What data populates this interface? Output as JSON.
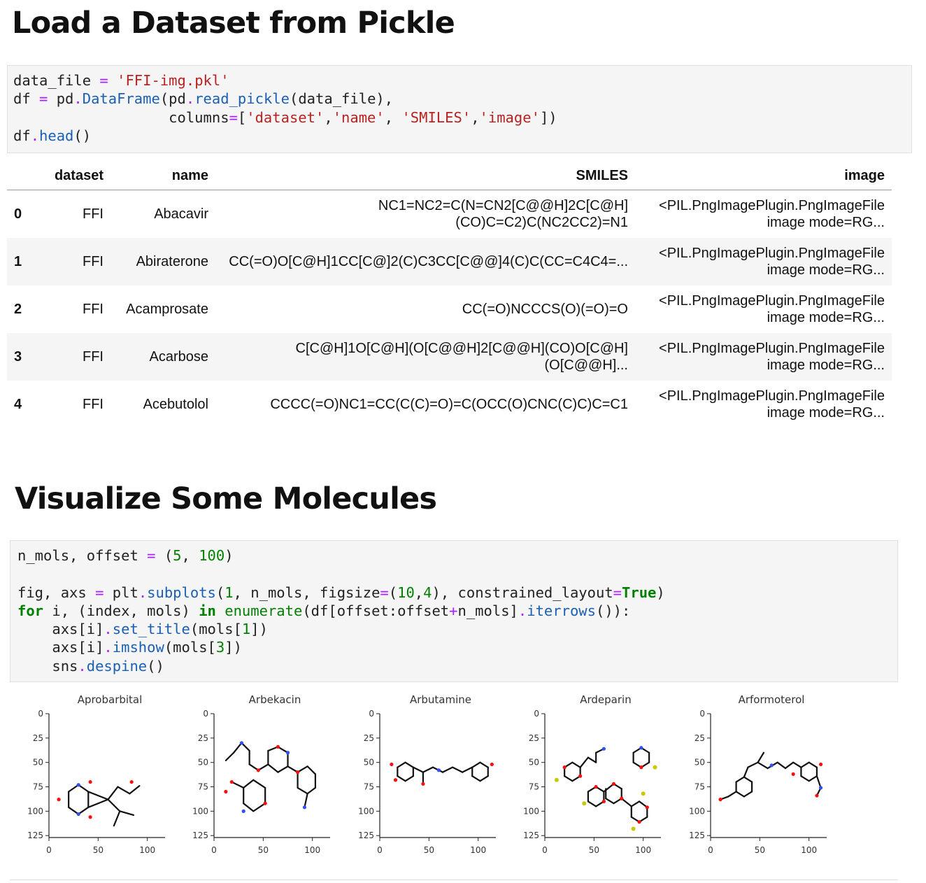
{
  "section1": {
    "heading": "Load a Dataset from Pickle"
  },
  "section2": {
    "heading": "Visualize Some Molecules"
  },
  "table": {
    "columns": [
      "dataset",
      "name",
      "SMILES",
      "image"
    ],
    "rows": [
      {
        "index": "0",
        "dataset": "FFI",
        "name": "Abacavir",
        "smiles_1": "NC1=NC2=C(N=CN2[C@@H]2C[C@H]",
        "smiles_2": "(CO)C=C2)C(NC2CC2)=N1",
        "image_1": "<PIL.PngImagePlugin.PngImageFile",
        "image_2": "image mode=RG..."
      },
      {
        "index": "1",
        "dataset": "FFI",
        "name": "Abiraterone",
        "smiles_1": "CC(=O)O[C@H]1CC[C@]2(C)C3CC[C@@]4(C)C(CC=C4C4=...",
        "smiles_2": "",
        "image_1": "<PIL.PngImagePlugin.PngImageFile",
        "image_2": "image mode=RG..."
      },
      {
        "index": "2",
        "dataset": "FFI",
        "name": "Acamprosate",
        "smiles_1": "CC(=O)NCCCS(O)(=O)=O",
        "smiles_2": "",
        "image_1": "<PIL.PngImagePlugin.PngImageFile",
        "image_2": "image mode=RG..."
      },
      {
        "index": "3",
        "dataset": "FFI",
        "name": "Acarbose",
        "smiles_1": "C[C@H]1O[C@H](O[C@@H]2[C@@H](CO)O[C@H]",
        "smiles_2": "(O[C@@H]...",
        "image_1": "<PIL.PngImagePlugin.PngImageFile",
        "image_2": "image mode=RG..."
      },
      {
        "index": "4",
        "dataset": "FFI",
        "name": "Acebutolol",
        "smiles_1": "CCCC(=O)NC1=CC(C(C)=O)=C(OCC(O)CNC(C)C)C=C1",
        "smiles_2": "",
        "image_1": "<PIL.PngImagePlugin.PngImageFile",
        "image_2": "image mode=RG..."
      }
    ]
  },
  "plots": {
    "yticks": [
      "0",
      "25",
      "50",
      "75",
      "100",
      "125"
    ],
    "xticks": [
      "0",
      "50",
      "100"
    ],
    "titles": [
      "Aprobarbital",
      "Arbekacin",
      "Arbutamine",
      "Ardeparin",
      "Arformoterol"
    ]
  },
  "colors": {
    "bond": "#111111",
    "oxygen": "#ff0d0d",
    "nitrogen": "#3050f8",
    "sulfur": "#c8c800"
  }
}
